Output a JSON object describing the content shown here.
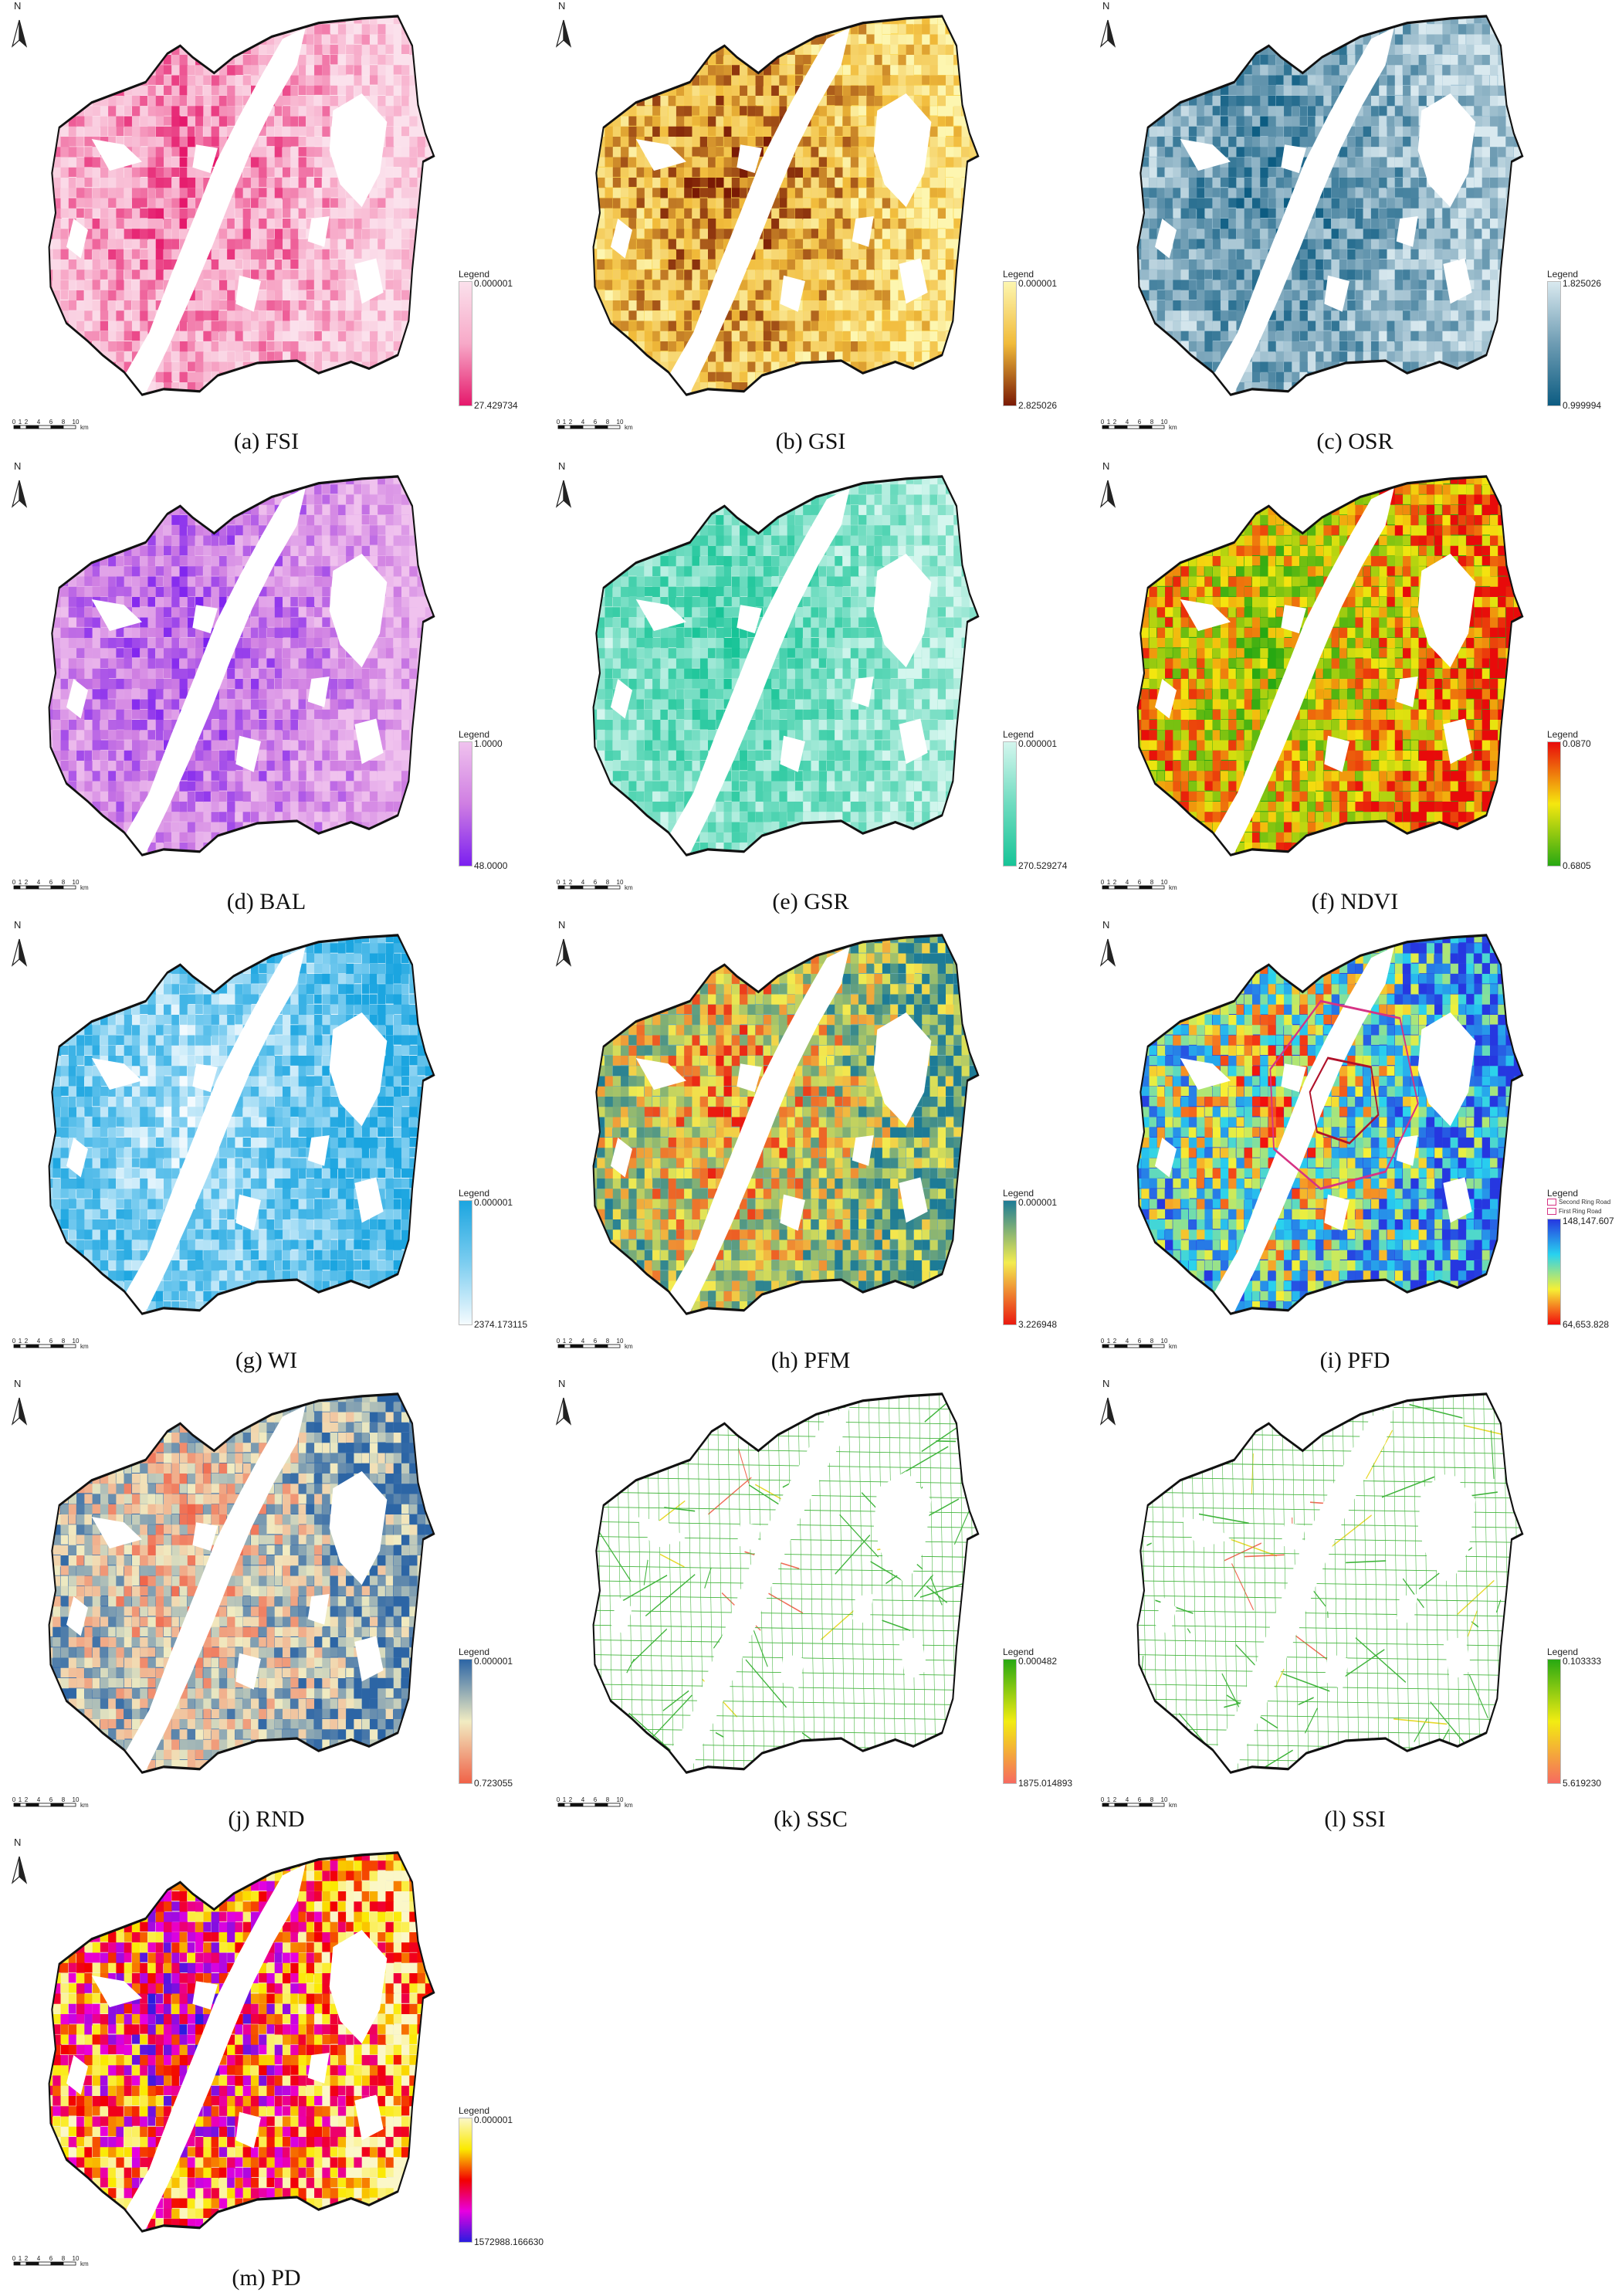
{
  "north_label": "N",
  "scale": {
    "ticks": [
      "0",
      "1",
      "2",
      "4",
      "6",
      "8",
      "10"
    ],
    "unit": "km"
  },
  "legend_title": "Legend",
  "panels": [
    {
      "caption": "(a) FSI",
      "top": "0.000001",
      "bottom": "27.429734",
      "colors": [
        "#fbe1ec",
        "#f7a9c8",
        "#e5186b"
      ],
      "low": "#fde6ef",
      "high": "#e91f73"
    },
    {
      "caption": "(b) GSI",
      "top": "0.000001",
      "bottom": "2.825026",
      "colors": [
        "#fdf6b0",
        "#f1bb3a",
        "#7a1a05"
      ],
      "low": "#fbd54b",
      "high": "#a8410e"
    },
    {
      "caption": "(c) OSR",
      "top": "1.825026",
      "bottom": "0.999994",
      "colors": [
        "#d9e9ef",
        "#6e9cb3",
        "#0c5c82"
      ],
      "low": "#9cc1d3",
      "high": "#1d5f84"
    },
    {
      "caption": "(d) BAL",
      "top": "1.0000",
      "bottom": "48.0000",
      "colors": [
        "#f0c2ee",
        "#cf7ee2",
        "#7b1ff0"
      ],
      "low": "#e8b6ec",
      "high": "#8a2cec"
    },
    {
      "caption": "(e) GSR",
      "top": "0.000001",
      "bottom": "270.529274",
      "colors": [
        "#d4f6ee",
        "#6fdcc0",
        "#17c497"
      ],
      "low": "#b4ecdc",
      "high": "#1bb98c"
    },
    {
      "caption": "(f) NDVI",
      "top": "0.0870",
      "bottom": "0.6805",
      "colors": [
        "#e80a0a",
        "#f5e70f",
        "#27a812"
      ],
      "low": "#2aa514",
      "high": "#e8290f"
    },
    {
      "caption": "(g) WI",
      "top": "0.000001",
      "bottom": "2374.173115",
      "colors": [
        "#1ba5e0",
        "#7ccdf0",
        "#f5fbfe"
      ],
      "low": "#e6f5fc",
      "high": "#18a6de"
    },
    {
      "caption": "(h) PFM",
      "top": "0.000001",
      "bottom": "3.226948",
      "colors": [
        "#1d7b96",
        "#f3ec50",
        "#ea1a10"
      ],
      "low": "#6aaeb4",
      "high": "#e63614"
    },
    {
      "caption": "(i) PFD",
      "top": "148,147.607",
      "bottom": "64,653.828",
      "colors": [
        "#2637e0",
        "#28d2ef",
        "#f6f035",
        "#f20d0d"
      ],
      "low": "#2a47e2",
      "high": "#ef2612",
      "rings": [
        "Second Ring Road",
        "First Ring Road"
      ]
    },
    {
      "caption": "(j) RND",
      "top": "0.000001",
      "bottom": "0.723055",
      "colors": [
        "#2c65a5",
        "#f1ecc2",
        "#f06248"
      ],
      "low": "#3b70ad",
      "high": "#ef6a4b"
    },
    {
      "caption": "(k) SSC",
      "top": "0.000482",
      "bottom": "1875.014893",
      "colors": [
        "#27a812",
        "#f2ec12",
        "#f66a60"
      ],
      "low": "#3fb43b",
      "high": "#f06050"
    },
    {
      "caption": "(l) SSI",
      "top": "0.103333",
      "bottom": "5.619230",
      "colors": [
        "#27a812",
        "#f2ec12",
        "#f66a60"
      ],
      "low": "#3fb43b",
      "high": "#f06050"
    },
    {
      "caption": "(m) PD",
      "top": "0.000001",
      "bottom": "1572988.166630",
      "colors": [
        "#fbf7c8",
        "#fbe900",
        "#f20000",
        "#e800e0",
        "#2a1ce0"
      ],
      "low": "#f1eed0",
      "high": "#f5d90a"
    }
  ]
}
